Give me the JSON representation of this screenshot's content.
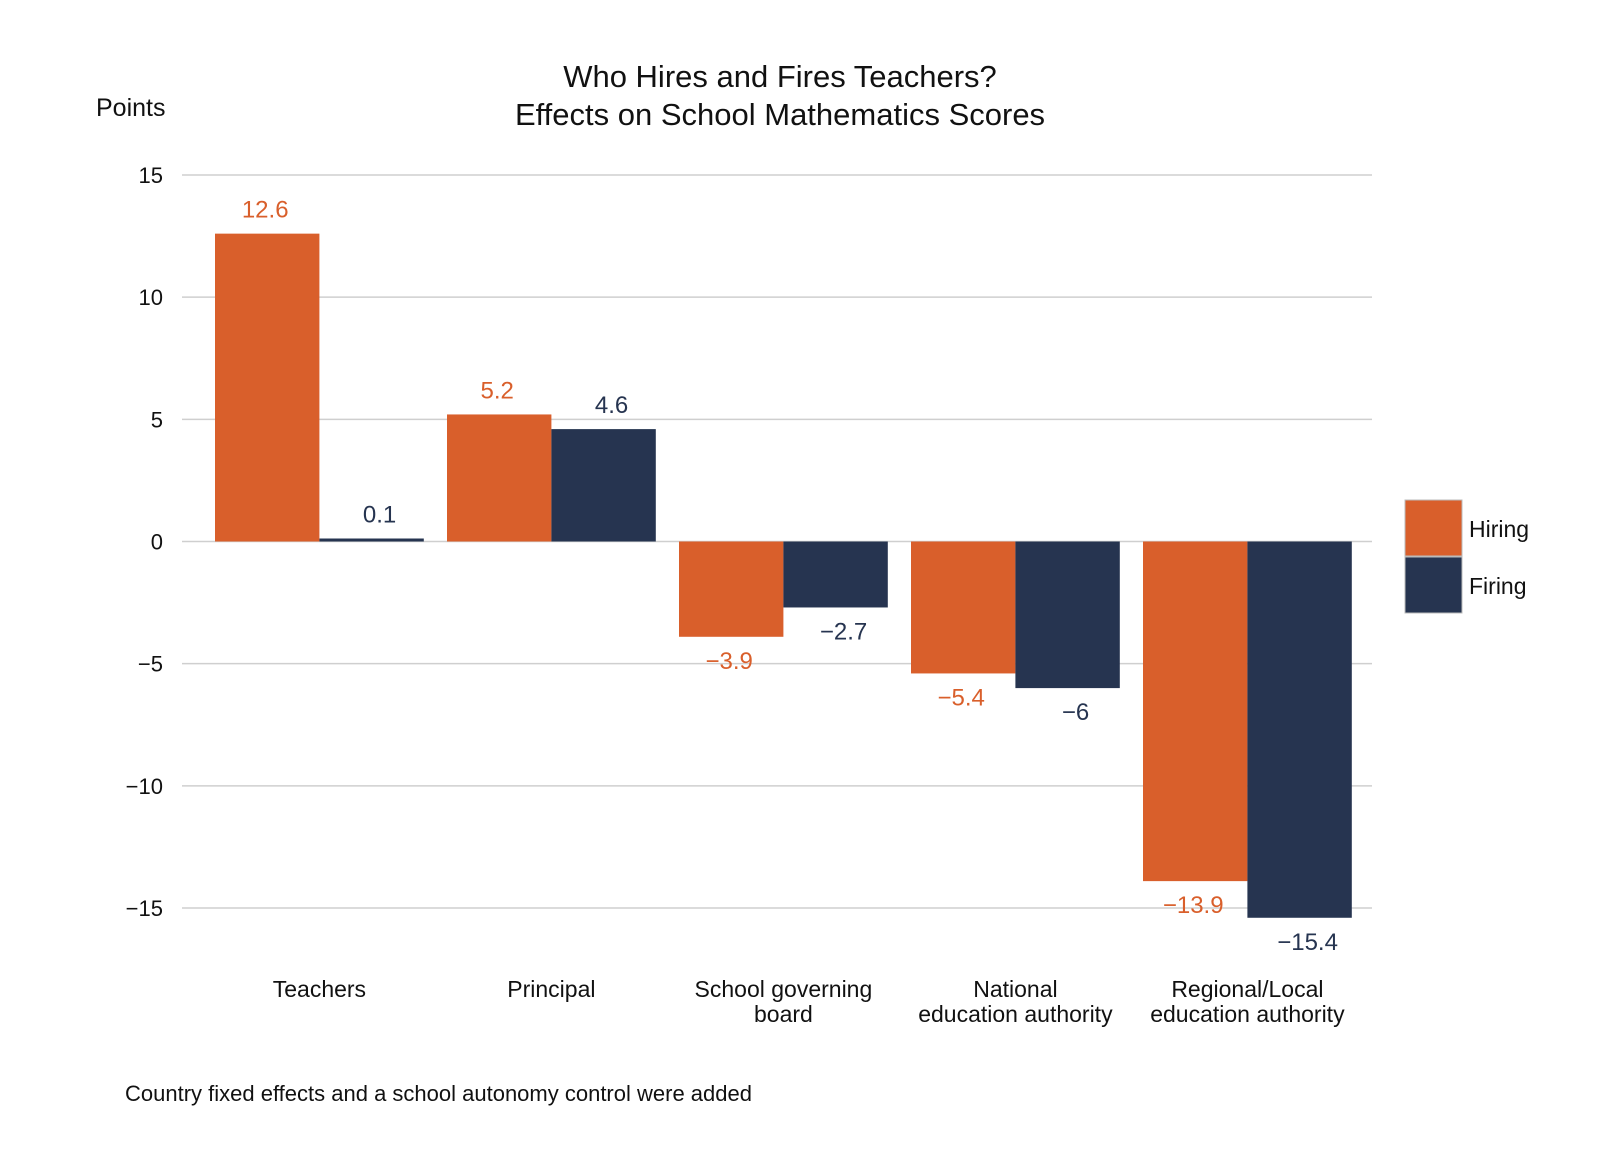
{
  "chart_data": {
    "type": "bar",
    "title_lines": [
      "Who Hires and Fires Teachers?",
      "Effects on School Mathematics Scores"
    ],
    "ylabel": "Points",
    "ylim": [
      -15,
      15
    ],
    "yticks": [
      15,
      10,
      5,
      0,
      -5,
      -10,
      -15
    ],
    "ytick_labels": [
      "15",
      "10",
      "5",
      "0",
      "−5",
      "−10",
      "−15"
    ],
    "categories": [
      [
        "Teachers"
      ],
      [
        "Principal"
      ],
      [
        "School governing",
        "board"
      ],
      [
        "National",
        "education authority"
      ],
      [
        "Regional/Local",
        "education authority"
      ]
    ],
    "series": [
      {
        "name": "Hiring",
        "color": "#D95F2B",
        "values": [
          12.6,
          5.2,
          -3.9,
          -5.4,
          -13.9
        ],
        "labels": [
          "12.6",
          "5.2",
          "−3.9",
          "−5.4",
          "−13.9"
        ]
      },
      {
        "name": "Firing",
        "color": "#263450",
        "values": [
          0.1,
          4.6,
          -2.7,
          -6,
          -15.4
        ],
        "labels": [
          "0.1",
          "4.6",
          "−2.7",
          "−6",
          "−15.4"
        ]
      }
    ],
    "legend_position": "right",
    "grid": true,
    "footnote": "Country fixed effects and a school autonomy control were added"
  }
}
